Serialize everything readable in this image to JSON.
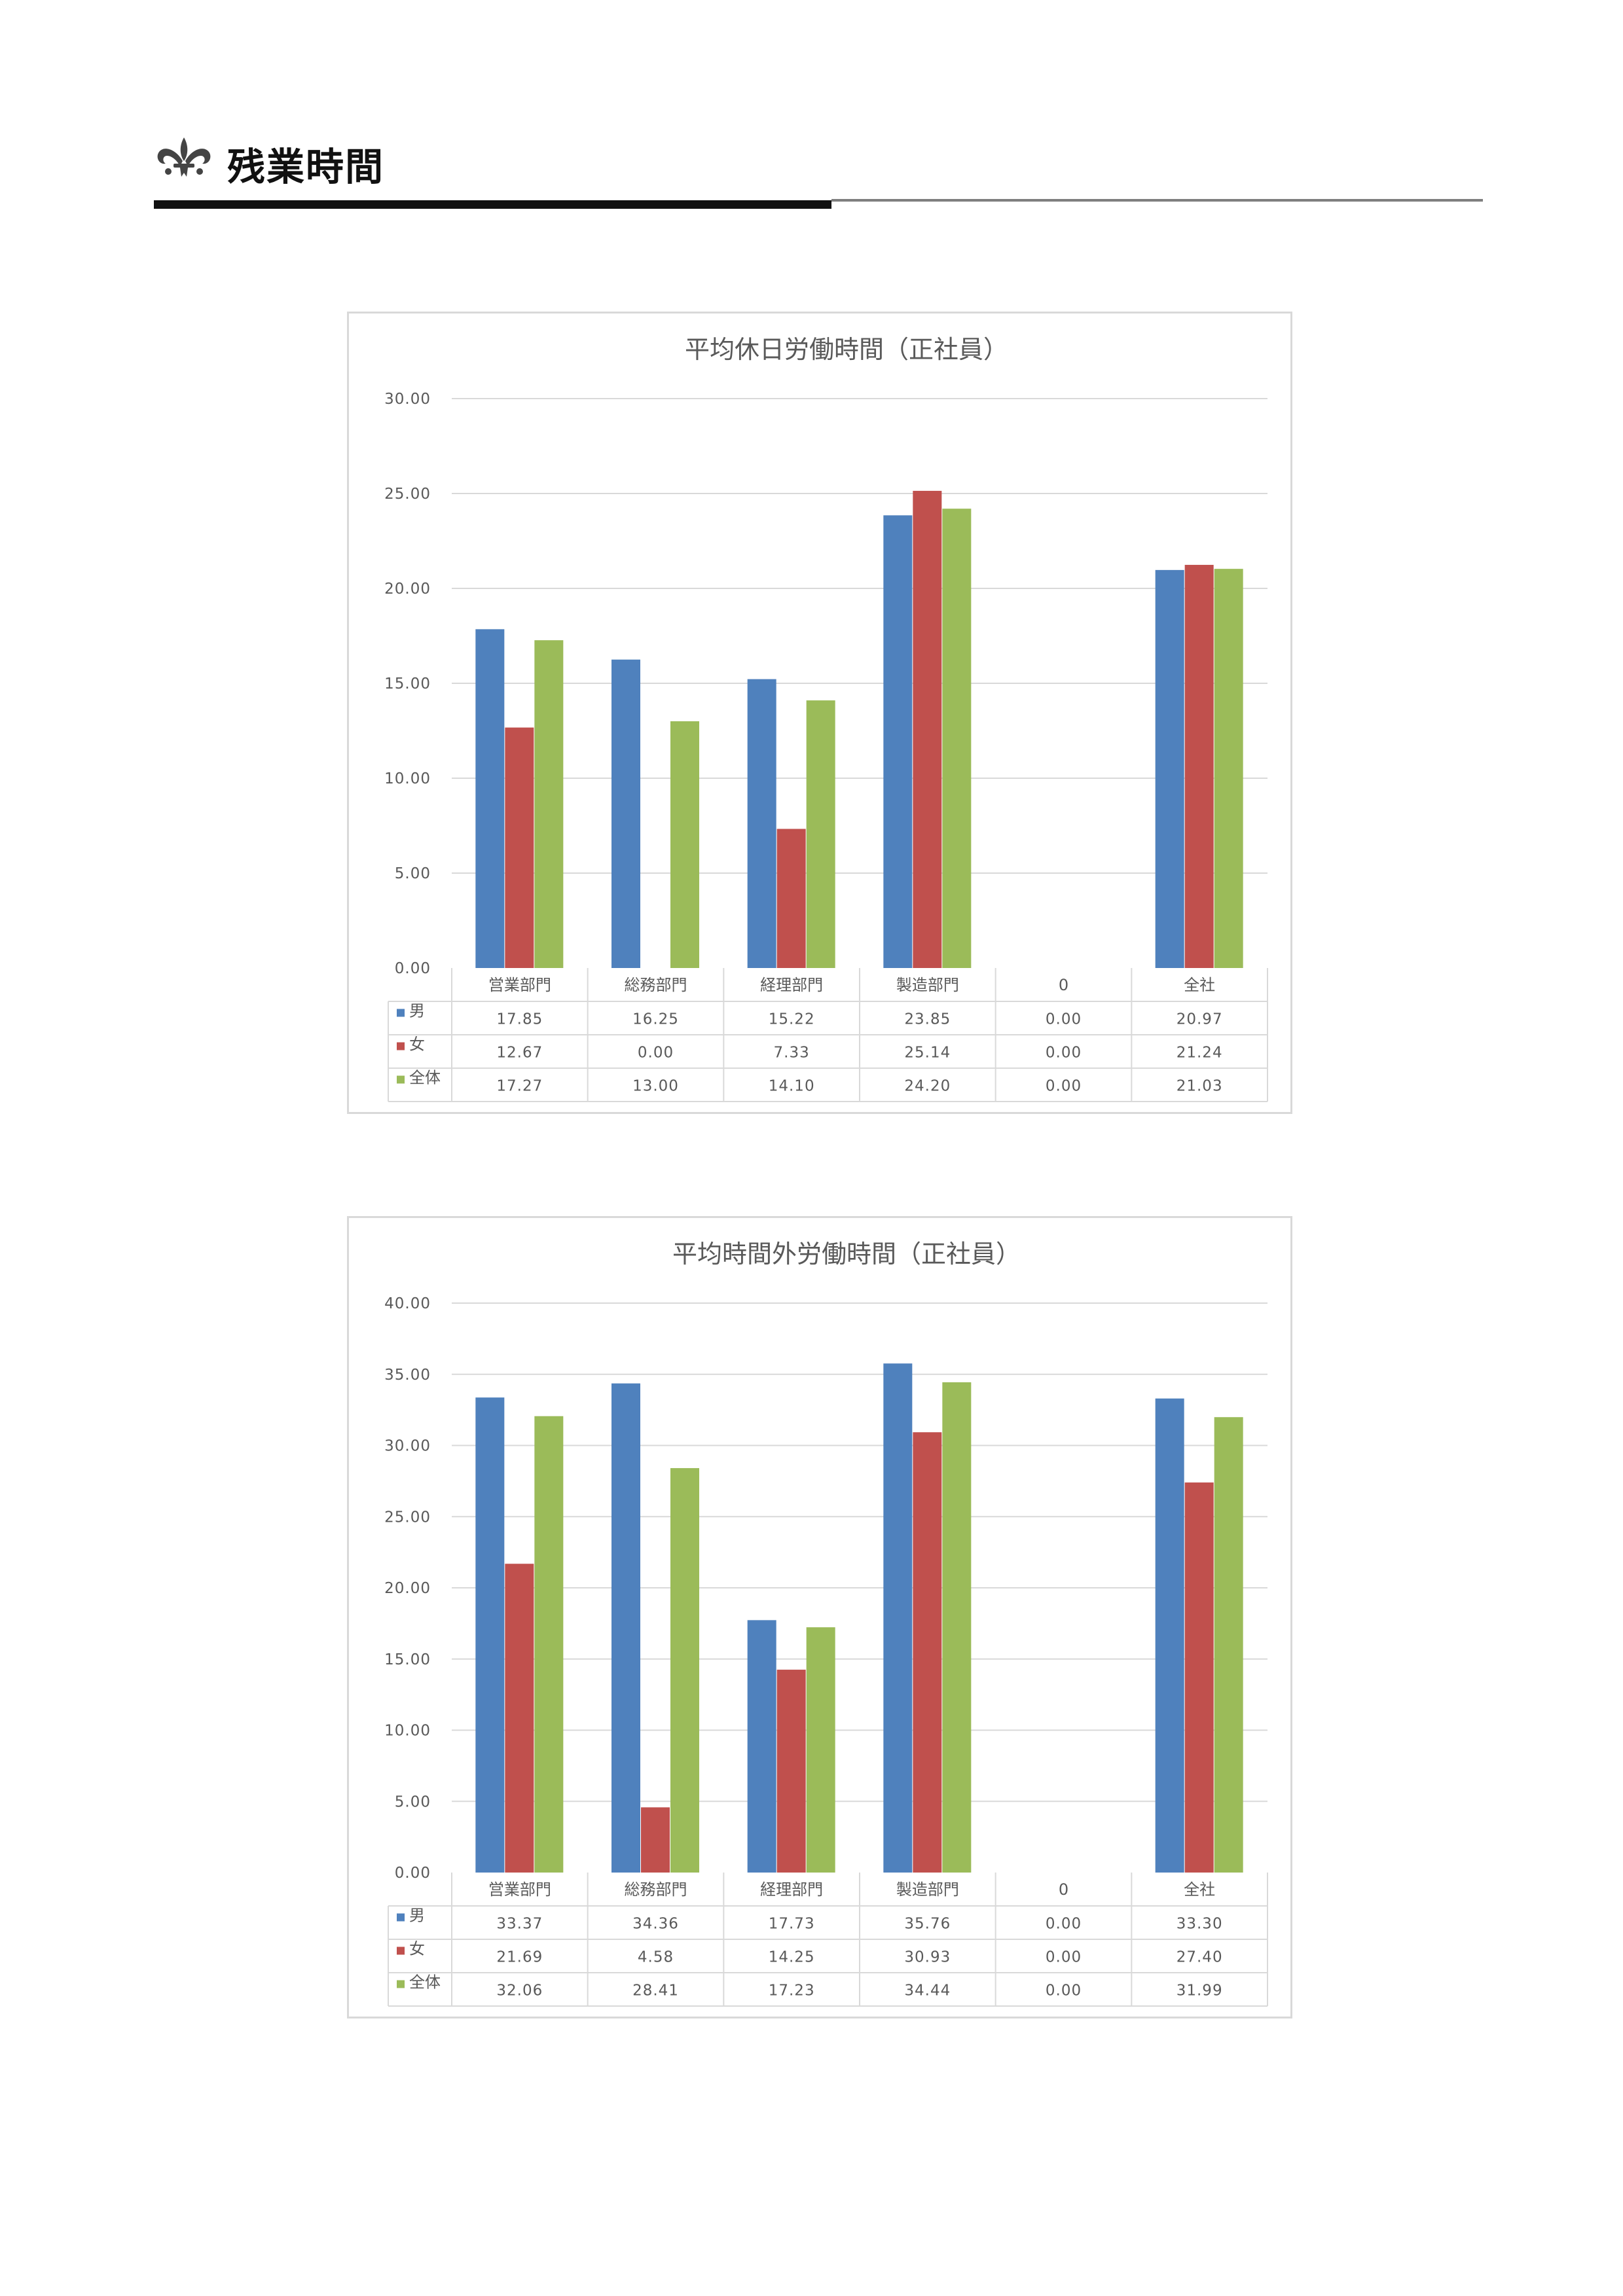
{
  "header": {
    "title": "残業時間",
    "ornament_icon": "fleur-de-lis-icon"
  },
  "colors": {
    "male": "#4F81BD",
    "female": "#C0504D",
    "all": "#9BBB59",
    "gridline": "#D9D9D9",
    "frame": "#D9D9D9",
    "text": "#595959"
  },
  "chart_data": [
    {
      "type": "bar",
      "title": "平均休日労働時間（正社員）",
      "categories": [
        "営業部門",
        "総務部門",
        "経理部門",
        "製造部門",
        "0",
        "全社"
      ],
      "series": [
        {
          "name": "男",
          "values": [
            17.85,
            16.25,
            15.22,
            23.85,
            0.0,
            20.97
          ]
        },
        {
          "name": "女",
          "values": [
            12.67,
            0.0,
            7.33,
            25.14,
            0.0,
            21.24
          ]
        },
        {
          "name": "全体",
          "values": [
            17.27,
            13.0,
            14.1,
            24.2,
            0.0,
            21.03
          ]
        }
      ],
      "ylim": [
        0,
        30
      ],
      "yticks": [
        "0.00",
        "5.00",
        "10.00",
        "15.00",
        "20.00",
        "25.00",
        "30.00"
      ],
      "grid": true,
      "legend": "data-table",
      "data_table": [
        [
          "17.85",
          "16.25",
          "15.22",
          "23.85",
          "0.00",
          "20.97"
        ],
        [
          "12.67",
          "0.00",
          "7.33",
          "25.14",
          "0.00",
          "21.24"
        ],
        [
          "17.27",
          "13.00",
          "14.10",
          "24.20",
          "0.00",
          "21.03"
        ]
      ]
    },
    {
      "type": "bar",
      "title": "平均時間外労働時間（正社員）",
      "categories": [
        "営業部門",
        "総務部門",
        "経理部門",
        "製造部門",
        "0",
        "全社"
      ],
      "series": [
        {
          "name": "男",
          "values": [
            33.37,
            34.36,
            17.73,
            35.76,
            0.0,
            33.3
          ]
        },
        {
          "name": "女",
          "values": [
            21.69,
            4.58,
            14.25,
            30.93,
            0.0,
            27.4
          ]
        },
        {
          "name": "全体",
          "values": [
            32.06,
            28.41,
            17.23,
            34.44,
            0.0,
            31.99
          ]
        }
      ],
      "ylim": [
        0,
        40
      ],
      "yticks": [
        "0.00",
        "5.00",
        "10.00",
        "15.00",
        "20.00",
        "25.00",
        "30.00",
        "35.00",
        "40.00"
      ],
      "grid": true,
      "legend": "data-table",
      "data_table": [
        [
          "33.37",
          "34.36",
          "17.73",
          "35.76",
          "0.00",
          "33.30"
        ],
        [
          "21.69",
          "4.58",
          "14.25",
          "30.93",
          "0.00",
          "27.40"
        ],
        [
          "32.06",
          "28.41",
          "17.23",
          "34.44",
          "0.00",
          "31.99"
        ]
      ]
    }
  ]
}
